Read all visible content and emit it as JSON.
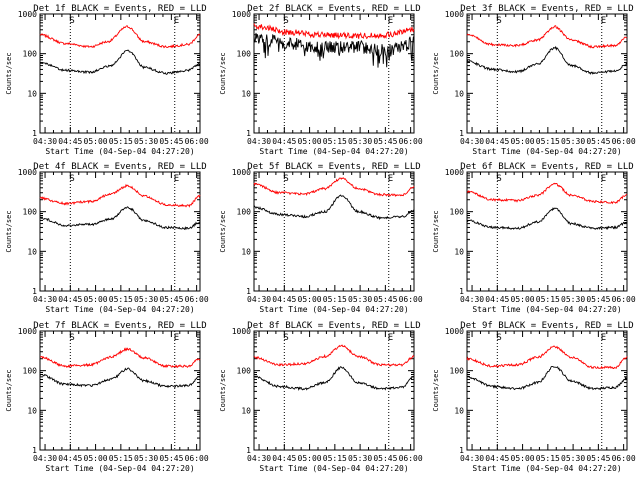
{
  "chart_data": [
    {
      "type": "line",
      "title": "Det 1f BLACK = Events, RED = LLD",
      "ylabel": "Counts/sec",
      "xlabel": "Start Time (04-Sep-04 04:27:20)",
      "x_ticks": [
        "04:30",
        "04:45",
        "05:00",
        "05:15",
        "05:30",
        "05:45",
        "06:00"
      ],
      "y_ticks": [
        "1",
        "10",
        "100",
        "1000"
      ],
      "x_range_min": [
        0,
        95
      ],
      "yscale": "log",
      "ylim": [
        1,
        1000
      ],
      "markers": [
        {
          "x_min": 18,
          "label": "S"
        },
        {
          "x_min": 80,
          "label": "E"
        }
      ],
      "series": [
        {
          "color": "#ff0000",
          "style": "smooth",
          "points": [
            [
              0,
              300
            ],
            [
              15,
              180
            ],
            [
              30,
              150
            ],
            [
              40,
              200
            ],
            [
              52,
              480
            ],
            [
              62,
              200
            ],
            [
              75,
              150
            ],
            [
              88,
              170
            ],
            [
              95,
              300
            ]
          ]
        },
        {
          "color": "#000000",
          "style": "smooth",
          "points": [
            [
              0,
              60
            ],
            [
              15,
              38
            ],
            [
              30,
              34
            ],
            [
              42,
              50
            ],
            [
              52,
              120
            ],
            [
              62,
              45
            ],
            [
              75,
              32
            ],
            [
              88,
              38
            ],
            [
              95,
              55
            ]
          ]
        }
      ]
    },
    {
      "type": "line",
      "title": "Det 2f BLACK = Events, RED = LLD",
      "ylabel": "Counts/sec",
      "xlabel": "Start Time (04-Sep-04 04:27:20)",
      "x_ticks": [
        "04:30",
        "04:45",
        "05:00",
        "05:15",
        "05:30",
        "05:45",
        "06:00"
      ],
      "y_ticks": [
        "1",
        "10",
        "100",
        "1000"
      ],
      "x_range_min": [
        0,
        95
      ],
      "yscale": "log",
      "ylim": [
        1,
        1000
      ],
      "markers": [
        {
          "x_min": 18,
          "label": "S"
        },
        {
          "x_min": 80,
          "label": "E"
        }
      ],
      "series": [
        {
          "color": "#ff0000",
          "style": "noisy",
          "points": [
            [
              0,
              500
            ],
            [
              20,
              350
            ],
            [
              40,
              300
            ],
            [
              60,
              280
            ],
            [
              80,
              300
            ],
            [
              95,
              420
            ]
          ]
        },
        {
          "color": "#000000",
          "style": "noisy",
          "points": [
            [
              0,
              250
            ],
            [
              20,
              180
            ],
            [
              40,
              140
            ],
            [
              60,
              150
            ],
            [
              80,
              120
            ],
            [
              95,
              200
            ]
          ]
        }
      ]
    },
    {
      "type": "line",
      "title": "Det 3f BLACK = Events, RED = LLD",
      "ylabel": "Counts/sec",
      "xlabel": "Start Time (04-Sep-04 04:27:20)",
      "x_ticks": [
        "04:30",
        "04:45",
        "05:00",
        "05:15",
        "05:30",
        "05:45",
        "06:00"
      ],
      "y_ticks": [
        "1",
        "10",
        "100",
        "1000"
      ],
      "x_range_min": [
        0,
        95
      ],
      "yscale": "log",
      "ylim": [
        1,
        1000
      ],
      "markers": [
        {
          "x_min": 18,
          "label": "S"
        },
        {
          "x_min": 80,
          "label": "E"
        }
      ],
      "series": [
        {
          "color": "#ff0000",
          "style": "smooth",
          "points": [
            [
              0,
              300
            ],
            [
              15,
              170
            ],
            [
              30,
              160
            ],
            [
              42,
              220
            ],
            [
              52,
              480
            ],
            [
              62,
              220
            ],
            [
              75,
              150
            ],
            [
              88,
              160
            ],
            [
              95,
              260
            ]
          ]
        },
        {
          "color": "#000000",
          "style": "smooth",
          "points": [
            [
              0,
              65
            ],
            [
              15,
              40
            ],
            [
              30,
              35
            ],
            [
              42,
              55
            ],
            [
              52,
              140
            ],
            [
              62,
              50
            ],
            [
              75,
              32
            ],
            [
              88,
              36
            ],
            [
              95,
              55
            ]
          ]
        }
      ]
    },
    {
      "type": "line",
      "title": "Det 4f BLACK = Events, RED = LLD",
      "ylabel": "Counts/sec",
      "xlabel": "Start Time (04-Sep-04 04:27:20)",
      "x_ticks": [
        "04:30",
        "04:45",
        "05:00",
        "05:15",
        "05:30",
        "05:45",
        "06:00"
      ],
      "y_ticks": [
        "1",
        "10",
        "100",
        "1000"
      ],
      "x_range_min": [
        0,
        95
      ],
      "yscale": "log",
      "ylim": [
        1,
        1000
      ],
      "markers": [
        {
          "x_min": 18,
          "label": "S"
        },
        {
          "x_min": 80,
          "label": "E"
        }
      ],
      "series": [
        {
          "color": "#ff0000",
          "style": "smooth",
          "points": [
            [
              0,
              220
            ],
            [
              15,
              160
            ],
            [
              30,
              180
            ],
            [
              42,
              280
            ],
            [
              52,
              450
            ],
            [
              62,
              250
            ],
            [
              75,
              150
            ],
            [
              88,
              140
            ],
            [
              95,
              250
            ]
          ]
        },
        {
          "color": "#000000",
          "style": "smooth",
          "points": [
            [
              0,
              70
            ],
            [
              15,
              45
            ],
            [
              30,
              48
            ],
            [
              42,
              65
            ],
            [
              52,
              130
            ],
            [
              62,
              60
            ],
            [
              75,
              40
            ],
            [
              88,
              38
            ],
            [
              95,
              55
            ]
          ]
        }
      ]
    },
    {
      "type": "line",
      "title": "Det 5f BLACK = Events, RED = LLD",
      "ylabel": "Counts/sec",
      "xlabel": "Start Time (04-Sep-04 04:27:20)",
      "x_ticks": [
        "04:30",
        "04:45",
        "05:00",
        "05:15",
        "05:30",
        "05:45",
        "06:00"
      ],
      "y_ticks": [
        "1",
        "10",
        "100",
        "1000"
      ],
      "x_range_min": [
        0,
        95
      ],
      "yscale": "log",
      "ylim": [
        1,
        1000
      ],
      "markers": [
        {
          "x_min": 18,
          "label": "S"
        },
        {
          "x_min": 80,
          "label": "E"
        }
      ],
      "series": [
        {
          "color": "#ff0000",
          "style": "smooth",
          "points": [
            [
              0,
              500
            ],
            [
              15,
              300
            ],
            [
              30,
              280
            ],
            [
              42,
              380
            ],
            [
              52,
              700
            ],
            [
              62,
              380
            ],
            [
              75,
              270
            ],
            [
              88,
              260
            ],
            [
              95,
              420
            ]
          ]
        },
        {
          "color": "#000000",
          "style": "smooth",
          "points": [
            [
              0,
              130
            ],
            [
              15,
              85
            ],
            [
              30,
              75
            ],
            [
              42,
              100
            ],
            [
              52,
              260
            ],
            [
              62,
              100
            ],
            [
              75,
              70
            ],
            [
              88,
              75
            ],
            [
              95,
              110
            ]
          ]
        }
      ]
    },
    {
      "type": "line",
      "title": "Det 6f BLACK = Events, RED = LLD",
      "ylabel": "Counts/sec",
      "xlabel": "Start Time (04-Sep-04 04:27:20)",
      "x_ticks": [
        "04:30",
        "04:45",
        "05:00",
        "05:15",
        "05:30",
        "05:45",
        "06:00"
      ],
      "y_ticks": [
        "1",
        "10",
        "100",
        "1000"
      ],
      "x_range_min": [
        0,
        95
      ],
      "yscale": "log",
      "ylim": [
        1,
        1000
      ],
      "markers": [
        {
          "x_min": 18,
          "label": "S"
        },
        {
          "x_min": 80,
          "label": "E"
        }
      ],
      "series": [
        {
          "color": "#ff0000",
          "style": "smooth",
          "points": [
            [
              0,
              320
            ],
            [
              15,
              200
            ],
            [
              30,
              190
            ],
            [
              42,
              260
            ],
            [
              52,
              500
            ],
            [
              62,
              260
            ],
            [
              75,
              180
            ],
            [
              88,
              170
            ],
            [
              95,
              270
            ]
          ]
        },
        {
          "color": "#000000",
          "style": "smooth",
          "points": [
            [
              0,
              60
            ],
            [
              15,
              40
            ],
            [
              30,
              38
            ],
            [
              42,
              55
            ],
            [
              52,
              120
            ],
            [
              62,
              50
            ],
            [
              75,
              38
            ],
            [
              88,
              40
            ],
            [
              95,
              55
            ]
          ]
        }
      ]
    },
    {
      "type": "line",
      "title": "Det 7f BLACK = Events, RED = LLD",
      "ylabel": "Counts/sec",
      "xlabel": "Start Time (04-Sep-04 04:27:20)",
      "x_ticks": [
        "04:30",
        "04:45",
        "05:00",
        "05:15",
        "05:30",
        "05:45",
        "06:00"
      ],
      "y_ticks": [
        "1",
        "10",
        "100",
        "1000"
      ],
      "x_range_min": [
        0,
        95
      ],
      "yscale": "log",
      "ylim": [
        1,
        1000
      ],
      "markers": [
        {
          "x_min": 18,
          "label": "S"
        },
        {
          "x_min": 80,
          "label": "E"
        }
      ],
      "series": [
        {
          "color": "#ff0000",
          "style": "smooth",
          "points": [
            [
              0,
              220
            ],
            [
              15,
              130
            ],
            [
              30,
              140
            ],
            [
              42,
              220
            ],
            [
              52,
              350
            ],
            [
              62,
              210
            ],
            [
              75,
              130
            ],
            [
              88,
              130
            ],
            [
              95,
              200
            ]
          ]
        },
        {
          "color": "#000000",
          "style": "smooth",
          "points": [
            [
              0,
              80
            ],
            [
              15,
              45
            ],
            [
              30,
              42
            ],
            [
              42,
              60
            ],
            [
              52,
              110
            ],
            [
              62,
              55
            ],
            [
              75,
              40
            ],
            [
              88,
              42
            ],
            [
              95,
              70
            ]
          ]
        }
      ]
    },
    {
      "type": "line",
      "title": "Det 8f BLACK = Events, RED = LLD",
      "ylabel": "Counts/sec",
      "xlabel": "Start Time (04-Sep-04 04:27:20)",
      "x_ticks": [
        "04:30",
        "04:45",
        "05:00",
        "05:15",
        "05:30",
        "05:45",
        "06:00"
      ],
      "y_ticks": [
        "1",
        "10",
        "100",
        "1000"
      ],
      "x_range_min": [
        0,
        95
      ],
      "yscale": "log",
      "ylim": [
        1,
        1000
      ],
      "markers": [
        {
          "x_min": 18,
          "label": "S"
        },
        {
          "x_min": 80,
          "label": "E"
        }
      ],
      "series": [
        {
          "color": "#ff0000",
          "style": "smooth",
          "points": [
            [
              0,
              220
            ],
            [
              15,
              140
            ],
            [
              30,
              150
            ],
            [
              42,
              230
            ],
            [
              52,
              420
            ],
            [
              62,
              230
            ],
            [
              75,
              140
            ],
            [
              88,
              140
            ],
            [
              95,
              230
            ]
          ]
        },
        {
          "color": "#000000",
          "style": "smooth",
          "points": [
            [
              0,
              70
            ],
            [
              15,
              40
            ],
            [
              30,
              35
            ],
            [
              42,
              50
            ],
            [
              52,
              120
            ],
            [
              62,
              50
            ],
            [
              75,
              35
            ],
            [
              88,
              38
            ],
            [
              95,
              70
            ]
          ]
        }
      ]
    },
    {
      "type": "line",
      "title": "Det 9f BLACK = Events, RED = LLD",
      "ylabel": "Counts/sec",
      "xlabel": "Start Time (04-Sep-04 04:27:20)",
      "x_ticks": [
        "04:30",
        "04:45",
        "05:00",
        "05:15",
        "05:30",
        "05:45",
        "06:00"
      ],
      "y_ticks": [
        "1",
        "10",
        "100",
        "1000"
      ],
      "x_range_min": [
        0,
        95
      ],
      "yscale": "log",
      "ylim": [
        1,
        1000
      ],
      "markers": [
        {
          "x_min": 18,
          "label": "S"
        },
        {
          "x_min": 80,
          "label": "E"
        }
      ],
      "series": [
        {
          "color": "#ff0000",
          "style": "smooth",
          "points": [
            [
              0,
              200
            ],
            [
              15,
              130
            ],
            [
              30,
              140
            ],
            [
              42,
              220
            ],
            [
              52,
              400
            ],
            [
              62,
              220
            ],
            [
              75,
              120
            ],
            [
              88,
              120
            ],
            [
              95,
              220
            ]
          ]
        },
        {
          "color": "#000000",
          "style": "smooth",
          "points": [
            [
              0,
              70
            ],
            [
              15,
              40
            ],
            [
              30,
              35
            ],
            [
              42,
              50
            ],
            [
              52,
              130
            ],
            [
              62,
              55
            ],
            [
              75,
              35
            ],
            [
              88,
              38
            ],
            [
              95,
              65
            ]
          ]
        }
      ]
    }
  ]
}
